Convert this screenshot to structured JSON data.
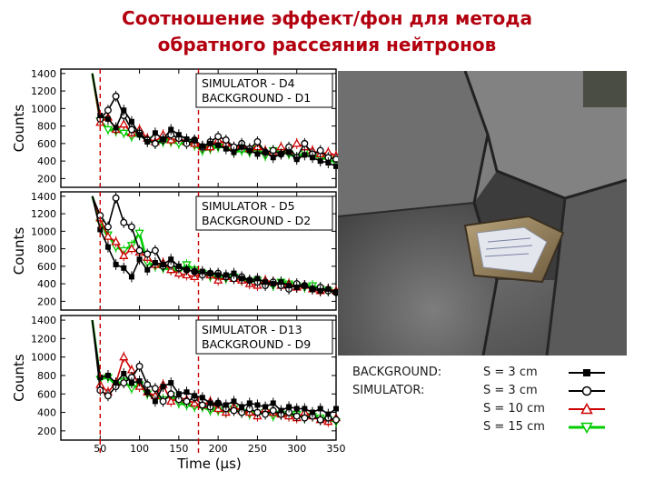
{
  "title_line1": "Соотношение эффект/фон для метода",
  "title_line2": "обратного рассеяния нейтронов",
  "chart_data": {
    "type": "line",
    "xlabel": "Time (µs)",
    "ylabel": "Counts",
    "xlim": [
      0,
      350
    ],
    "ylim": [
      100,
      1450
    ],
    "x_ticks": [
      "50",
      "100",
      "150",
      "200",
      "250",
      "300",
      "350"
    ],
    "y_ticks": [
      "200",
      "400",
      "600",
      "800",
      "1000",
      "1200",
      "1400"
    ],
    "markers_x": [
      50,
      175
    ],
    "x": [
      40,
      50,
      60,
      70,
      80,
      90,
      100,
      110,
      120,
      130,
      140,
      150,
      160,
      170,
      180,
      190,
      200,
      210,
      220,
      230,
      240,
      250,
      260,
      270,
      280,
      290,
      300,
      310,
      320,
      330,
      340,
      350
    ],
    "legend_groups": [
      "BACKGROUND:",
      "SIMULATOR:"
    ],
    "panels": [
      {
        "label_line1": "SIMULATOR     - D4",
        "label_line2": "BACKGROUND - D1",
        "series": [
          {
            "name": "S = 3 cm",
            "color": "#000000",
            "marker": "square-filled",
            "values": [
              1400,
              920,
              880,
              780,
              980,
              850,
              700,
              620,
              720,
              650,
              760,
              700,
              650,
              640,
              570,
              600,
              580,
              540,
              500,
              560,
              520,
              480,
              500,
              440,
              480,
              500,
              420,
              470,
              440,
              400,
              380,
              340
            ]
          },
          {
            "name": "S = 3 cm",
            "color": "#000000",
            "marker": "circle-open",
            "values": [
              1400,
              880,
              980,
              1140,
              920,
              760,
              720,
              640,
              600,
              640,
              700,
              660,
              600,
              640,
              560,
              620,
              680,
              640,
              560,
              600,
              540,
              620,
              500,
              520,
              480,
              560,
              440,
              600,
              480,
              520,
              440,
              420
            ]
          },
          {
            "name": "S = 10 cm",
            "color": "#cc0000",
            "marker": "triangle-open",
            "values": [
              1400,
              840,
              900,
              760,
              820,
              720,
              760,
              660,
              620,
              700,
              640,
              660,
              620,
              600,
              560,
              560,
              640,
              600,
              560,
              580,
              540,
              560,
              520,
              500,
              560,
              520,
              600,
              560,
              520,
              480,
              500,
              460
            ]
          },
          {
            "name": "S = 15 cm",
            "color": "#00cc00",
            "marker": "triangle-down-open",
            "values": [
              1400,
              860,
              760,
              740,
              720,
              680,
              700,
              640,
              600,
              620,
              620,
              600,
              600,
              580,
              520,
              540,
              560,
              560,
              500,
              520,
              500,
              540,
              460,
              520,
              500,
              480,
              440,
              500,
              460,
              440,
              420,
              380
            ]
          }
        ]
      },
      {
        "label_line1": "SIMULATOR     - D5",
        "label_line2": "BACKGROUND - D2",
        "series": [
          {
            "name": "S = 3 cm",
            "color": "#000000",
            "marker": "square-filled",
            "values": [
              1400,
              1020,
              820,
              620,
              580,
              480,
              680,
              560,
              640,
              620,
              680,
              600,
              560,
              540,
              540,
              520,
              500,
              500,
              520,
              460,
              440,
              460,
              420,
              400,
              420,
              380,
              360,
              380,
              340,
              320,
              340,
              300
            ]
          },
          {
            "name": "S = 3 cm",
            "color": "#000000",
            "marker": "circle-open",
            "values": [
              1400,
              1180,
              1050,
              1380,
              1100,
              1050,
              780,
              740,
              780,
              600,
              620,
              580,
              560,
              540,
              500,
              520,
              520,
              480,
              460,
              480,
              440,
              420,
              380,
              420,
              380,
              340,
              400,
              380,
              340,
              360,
              320,
              300
            ]
          },
          {
            "name": "S = 10 cm",
            "color": "#cc0000",
            "marker": "triangle-open",
            "values": [
              1400,
              1150,
              940,
              880,
              720,
              800,
              760,
              700,
              620,
              640,
              560,
              520,
              500,
              480,
              520,
              500,
              440,
              480,
              460,
              440,
              400,
              380,
              440,
              420,
              380,
              400,
              360,
              380,
              340,
              320,
              340,
              320
            ]
          },
          {
            "name": "S = 15 cm",
            "color": "#00cc00",
            "marker": "triangle-down-open",
            "values": [
              1400,
              1100,
              960,
              820,
              780,
              840,
              980,
              640,
              600,
              580,
              560,
              540,
              620,
              560,
              520,
              480,
              460,
              460,
              480,
              440,
              420,
              440,
              400,
              380,
              420,
              400,
              380,
              360,
              380,
              340,
              320,
              300
            ]
          }
        ]
      },
      {
        "label_line1": "SIMULATOR     - D13",
        "label_line2": "BACKGROUND - D9",
        "series": [
          {
            "name": "S = 3 cm",
            "color": "#000000",
            "marker": "square-filled",
            "values": [
              1400,
              780,
              800,
              720,
              820,
              720,
              740,
              620,
              520,
              680,
              720,
              600,
              620,
              580,
              560,
              500,
              500,
              480,
              520,
              460,
              500,
              480,
              460,
              500,
              420,
              460,
              440,
              440,
              400,
              440,
              380,
              440
            ]
          },
          {
            "name": "S = 3 cm",
            "color": "#000000",
            "marker": "circle-open",
            "values": [
              1400,
              640,
              580,
              680,
              720,
              780,
              900,
              700,
              660,
              520,
              600,
              540,
              520,
              560,
              480,
              460,
              500,
              440,
              420,
              400,
              440,
              400,
              380,
              420,
              380,
              400,
              360,
              340,
              360,
              320,
              340,
              320
            ]
          },
          {
            "name": "S = 10 cm",
            "color": "#cc0000",
            "marker": "triangle-open",
            "values": [
              1400,
              700,
              620,
              720,
              1000,
              860,
              680,
              620,
              580,
              700,
              520,
              560,
              540,
              500,
              480,
              520,
              440,
              400,
              460,
              420,
              400,
              360,
              440,
              400,
              380,
              360,
              340,
              400,
              360,
              320,
              300,
              340
            ]
          },
          {
            "name": "S = 15 cm",
            "color": "#00cc00",
            "marker": "triangle-down-open",
            "values": [
              1400,
              760,
              780,
              700,
              740,
              660,
              700,
              600,
              560,
              540,
              580,
              500,
              480,
              460,
              460,
              420,
              420,
              400,
              440,
              400,
              380,
              380,
              400,
              360,
              380,
              360,
              380,
              340,
              360,
              340,
              320,
              300
            ]
          }
        ]
      }
    ]
  }
}
